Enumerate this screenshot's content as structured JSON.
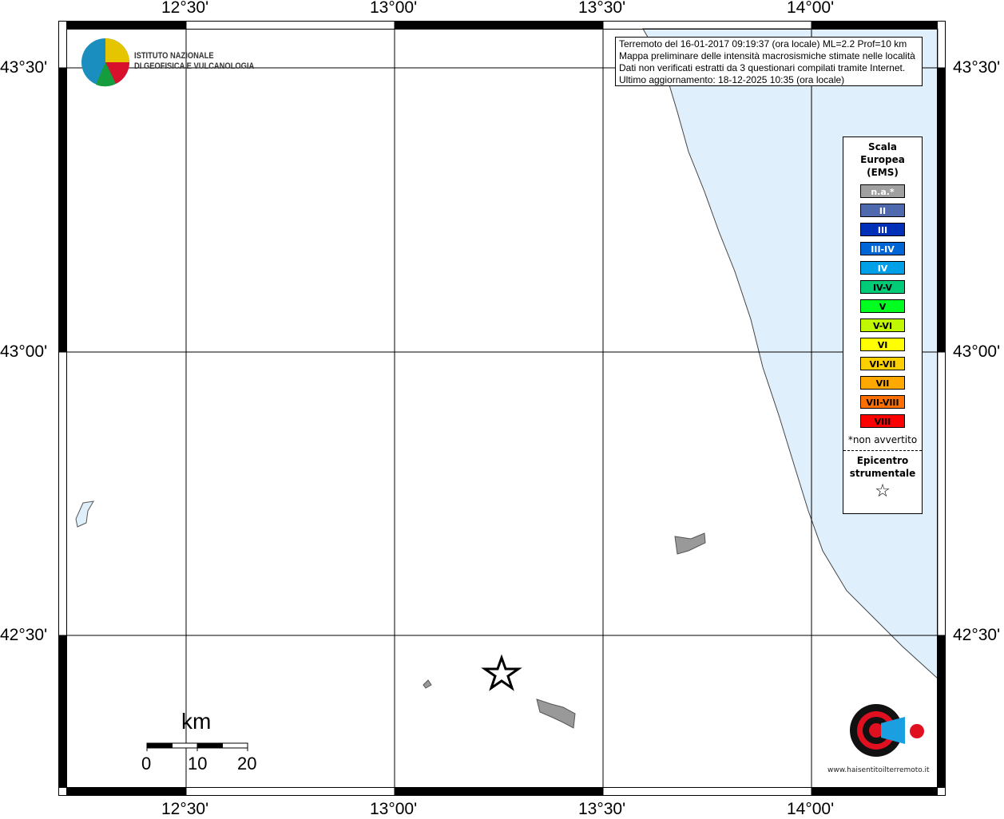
{
  "map": {
    "lon_labels": [
      "12°30'",
      "13°00'",
      "13°30'",
      "14°00'"
    ],
    "lat_labels": [
      "43°30'",
      "43°00'",
      "42°30'"
    ],
    "colors": {
      "sea": "#dff0fc",
      "land": "#ffffff",
      "islands": "#999999"
    }
  },
  "logo": {
    "line1": "ISTITUTO NAZIONALE",
    "line2": "DI GEOFISICA E VULCANOLOGIA"
  },
  "info": {
    "lines": [
      "Terremoto del 16-01-2017 09:19:37 (ora locale) ML=2.2 Prof=10 km",
      "Mappa preliminare delle intensità macrosismiche stimate nelle località",
      "Dati non verificati estratti da 3 questionari compilati tramite Internet.",
      "Ultimo aggiornamento: 18-12-2025 10:35 (ora locale)"
    ]
  },
  "legend": {
    "title": [
      "Scala",
      "Europea",
      "(EMS)"
    ],
    "classes": [
      {
        "label": "n.a.*",
        "color": "#a0a0a0",
        "text": "#ffffff"
      },
      {
        "label": "II",
        "color": "#4e69ae",
        "text": "#ffffff"
      },
      {
        "label": "III",
        "color": "#0030b8",
        "text": "#ffffff"
      },
      {
        "label": "III-IV",
        "color": "#0066d6",
        "text": "#ffffff"
      },
      {
        "label": "IV",
        "color": "#00a0e8",
        "text": "#ffffff"
      },
      {
        "label": "IV-V",
        "color": "#00cc78",
        "text": "#000000"
      },
      {
        "label": "V",
        "color": "#00ff20",
        "text": "#000000"
      },
      {
        "label": "V-VI",
        "color": "#c0f800",
        "text": "#000000"
      },
      {
        "label": "VI",
        "color": "#ffff00",
        "text": "#000000"
      },
      {
        "label": "VI-VII",
        "color": "#ffd000",
        "text": "#000000"
      },
      {
        "label": "VII",
        "color": "#ffa800",
        "text": "#000000"
      },
      {
        "label": "VII-VIII",
        "color": "#ff7000",
        "text": "#000000"
      },
      {
        "label": "VIII",
        "color": "#ff0000",
        "text": "#000000"
      }
    ],
    "note": "*non avvertito",
    "epicenter": [
      "Epicentro",
      "strumentale"
    ],
    "epicenter_icon": "star-icon"
  },
  "scalebar": {
    "unit": "km",
    "ticks": [
      "0",
      "10",
      "20"
    ]
  },
  "badge": {
    "text": "www.haisentitoilterremoto.it"
  }
}
